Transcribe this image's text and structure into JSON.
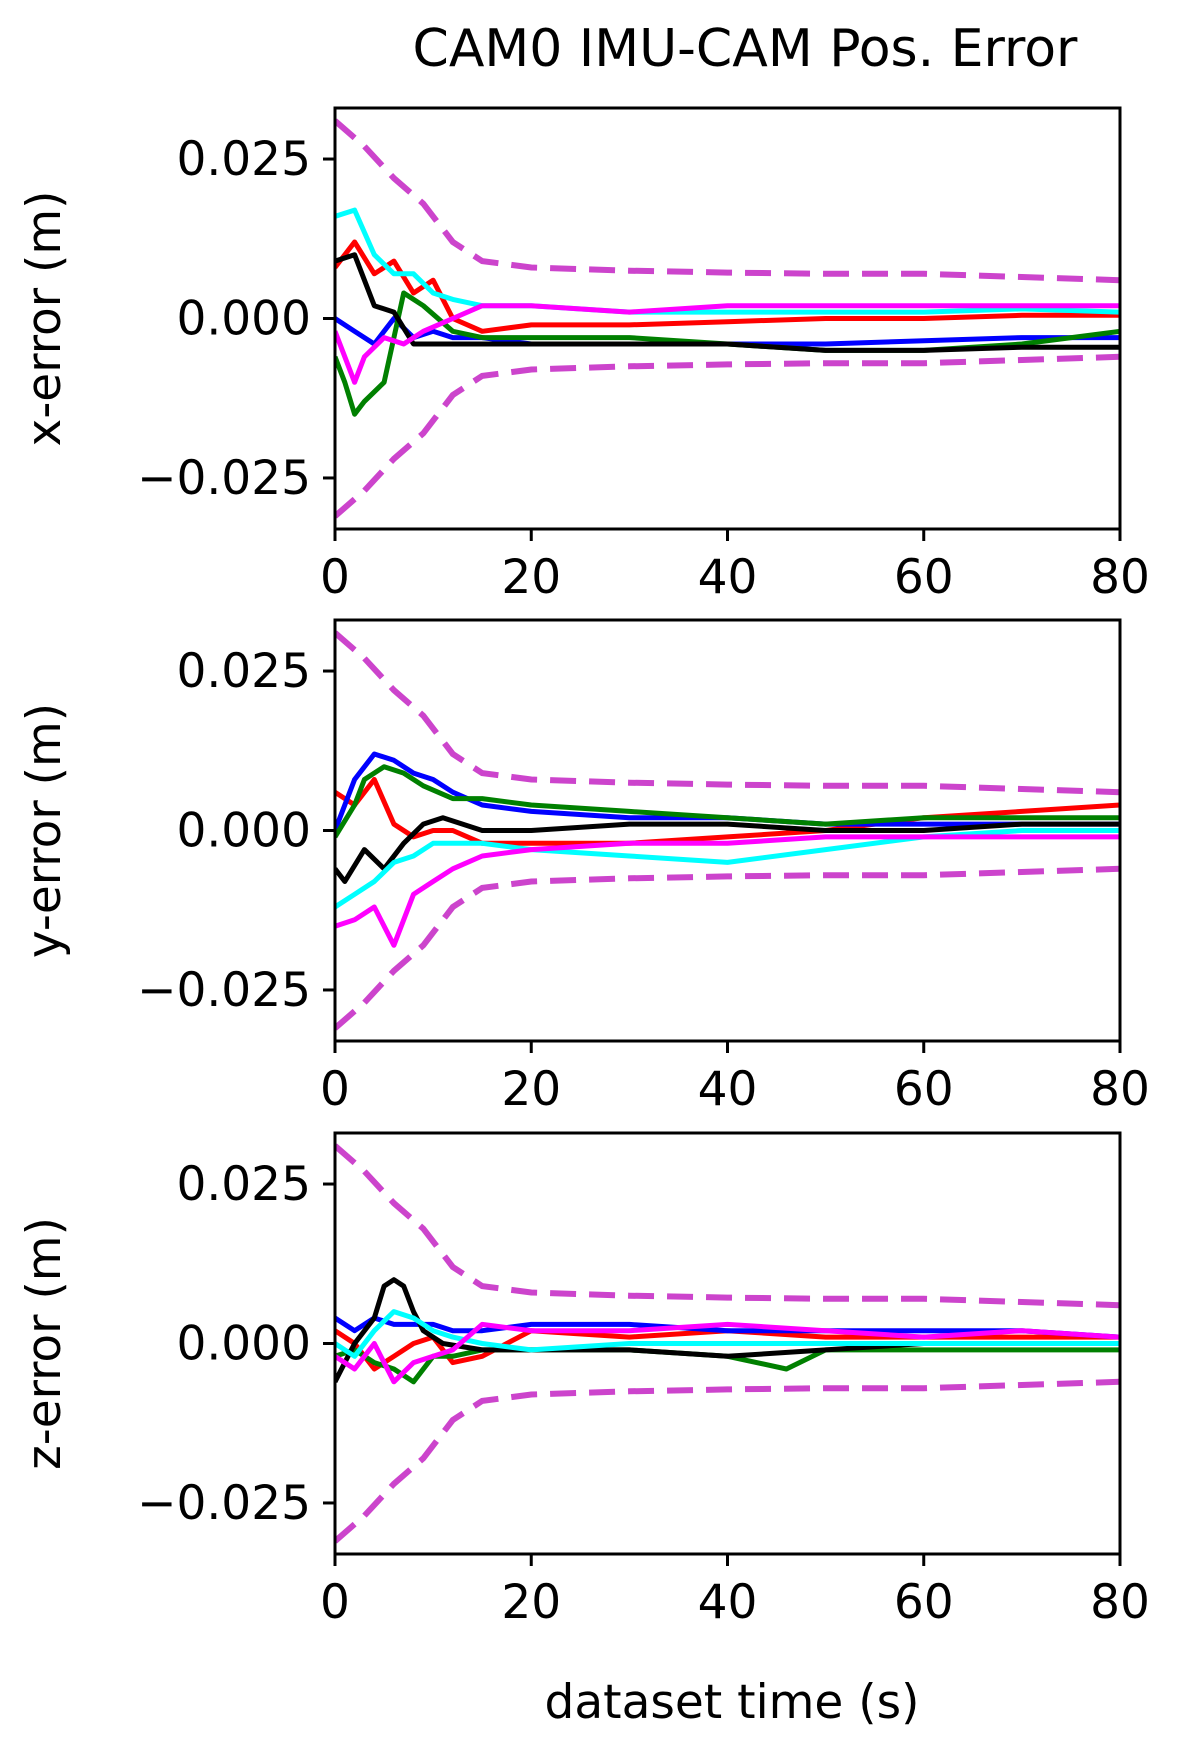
{
  "chart_data": {
    "type": "line",
    "title": "CAM0 IMU-CAM Pos.  Error",
    "xlabel": "dataset time (s)",
    "xlim": [
      0,
      80
    ],
    "xticks": [
      "0",
      "20",
      "40",
      "60",
      "80"
    ],
    "grid": false,
    "legend": "none",
    "series_colors": {
      "red": "#ff0000",
      "blue": "#0000ff",
      "green": "#008000",
      "black": "#000000",
      "cyan": "#00ffff",
      "magenta": "#ff00ff",
      "bound": "#cc44cc"
    },
    "panels": [
      {
        "ylabel": "x-error (m)",
        "ylim": [
          -0.033,
          0.033
        ],
        "yticks": [
          "0.025",
          "0.000",
          "−0.025"
        ],
        "bounds": {
          "t": [
            0,
            3,
            6,
            9,
            12,
            15,
            20,
            30,
            40,
            50,
            60,
            70,
            80
          ],
          "upper": [
            0.031,
            0.027,
            0.022,
            0.018,
            0.012,
            0.009,
            0.008,
            0.0075,
            0.0072,
            0.007,
            0.007,
            0.0065,
            0.006
          ],
          "lower": [
            -0.031,
            -0.027,
            -0.022,
            -0.018,
            -0.012,
            -0.009,
            -0.008,
            -0.0075,
            -0.0072,
            -0.007,
            -0.007,
            -0.0065,
            -0.006
          ]
        },
        "series": [
          {
            "color": "red",
            "t": [
              0,
              2,
              4,
              6,
              8,
              10,
              12,
              15,
              20,
              30,
              40,
              50,
              60,
              70,
              80
            ],
            "values": [
              0.008,
              0.012,
              0.007,
              0.009,
              0.004,
              0.006,
              0.0,
              -0.002,
              -0.001,
              -0.001,
              -0.0005,
              0.0,
              0.0,
              0.0005,
              0.0005
            ]
          },
          {
            "color": "blue",
            "t": [
              0,
              2,
              4,
              6,
              8,
              10,
              12,
              15,
              20,
              30,
              40,
              50,
              60,
              70,
              80
            ],
            "values": [
              0.0,
              -0.002,
              -0.004,
              0.0,
              -0.003,
              -0.002,
              -0.003,
              -0.003,
              -0.004,
              -0.004,
              -0.004,
              -0.004,
              -0.0035,
              -0.003,
              -0.003
            ]
          },
          {
            "color": "green",
            "t": [
              0,
              1,
              2,
              3,
              5,
              7,
              9,
              12,
              15,
              20,
              30,
              40,
              50,
              60,
              70,
              80
            ],
            "values": [
              -0.006,
              -0.01,
              -0.015,
              -0.013,
              -0.01,
              0.004,
              0.002,
              -0.002,
              -0.003,
              -0.003,
              -0.003,
              -0.004,
              -0.005,
              -0.005,
              -0.004,
              -0.002
            ]
          },
          {
            "color": "black",
            "t": [
              0,
              2,
              4,
              6,
              8,
              10,
              12,
              15,
              20,
              30,
              40,
              50,
              60,
              70,
              80
            ],
            "values": [
              0.009,
              0.01,
              0.002,
              0.001,
              -0.004,
              -0.004,
              -0.004,
              -0.004,
              -0.004,
              -0.004,
              -0.004,
              -0.005,
              -0.005,
              -0.0045,
              -0.0045
            ]
          },
          {
            "color": "cyan",
            "t": [
              0,
              2,
              4,
              6,
              8,
              10,
              12,
              15,
              20,
              30,
              40,
              50,
              60,
              70,
              80
            ],
            "values": [
              0.016,
              0.017,
              0.01,
              0.007,
              0.007,
              0.004,
              0.003,
              0.002,
              0.002,
              0.001,
              0.001,
              0.001,
              0.001,
              0.0015,
              0.001
            ]
          },
          {
            "color": "magenta",
            "t": [
              0,
              2,
              3,
              5,
              7,
              9,
              12,
              15,
              20,
              30,
              40,
              50,
              60,
              70,
              80
            ],
            "values": [
              -0.002,
              -0.01,
              -0.006,
              -0.003,
              -0.004,
              -0.002,
              0.0,
              0.002,
              0.002,
              0.001,
              0.002,
              0.002,
              0.002,
              0.002,
              0.002
            ]
          }
        ]
      },
      {
        "ylabel": "y-error (m)",
        "ylim": [
          -0.033,
          0.033
        ],
        "yticks": [
          "0.025",
          "0.000",
          "−0.025"
        ],
        "bounds": {
          "t": [
            0,
            3,
            6,
            9,
            12,
            15,
            20,
            30,
            40,
            50,
            60,
            70,
            80
          ],
          "upper": [
            0.031,
            0.027,
            0.022,
            0.018,
            0.012,
            0.009,
            0.008,
            0.0075,
            0.0072,
            0.007,
            0.007,
            0.0065,
            0.006
          ],
          "lower": [
            -0.031,
            -0.027,
            -0.022,
            -0.018,
            -0.012,
            -0.009,
            -0.008,
            -0.0075,
            -0.0072,
            -0.007,
            -0.007,
            -0.0065,
            -0.006
          ]
        },
        "series": [
          {
            "color": "red",
            "t": [
              0,
              2,
              4,
              6,
              8,
              10,
              12,
              15,
              20,
              30,
              40,
              50,
              60,
              70,
              80
            ],
            "values": [
              0.006,
              0.004,
              0.008,
              0.001,
              -0.001,
              0.0,
              0.0,
              -0.002,
              -0.002,
              -0.002,
              -0.001,
              0.0,
              0.002,
              0.003,
              0.004
            ]
          },
          {
            "color": "blue",
            "t": [
              0,
              2,
              4,
              6,
              8,
              10,
              12,
              15,
              20,
              30,
              40,
              50,
              60,
              70,
              80
            ],
            "values": [
              0.0,
              0.008,
              0.012,
              0.011,
              0.009,
              0.008,
              0.006,
              0.004,
              0.003,
              0.002,
              0.002,
              0.001,
              0.001,
              0.001,
              0.001
            ]
          },
          {
            "color": "green",
            "t": [
              0,
              2,
              3,
              5,
              7,
              9,
              12,
              15,
              20,
              30,
              40,
              50,
              60,
              70,
              80
            ],
            "values": [
              -0.001,
              0.004,
              0.008,
              0.01,
              0.009,
              0.007,
              0.005,
              0.005,
              0.004,
              0.003,
              0.002,
              0.001,
              0.002,
              0.002,
              0.002
            ]
          },
          {
            "color": "black",
            "t": [
              0,
              1,
              3,
              5,
              7,
              9,
              11,
              15,
              20,
              30,
              40,
              50,
              60,
              70,
              80
            ],
            "values": [
              -0.006,
              -0.008,
              -0.003,
              -0.006,
              -0.002,
              0.001,
              0.002,
              0.0,
              0.0,
              0.001,
              0.001,
              0.0,
              0.0,
              0.001,
              0.001
            ]
          },
          {
            "color": "cyan",
            "t": [
              0,
              2,
              4,
              6,
              8,
              10,
              12,
              15,
              20,
              30,
              40,
              50,
              60,
              70,
              80
            ],
            "values": [
              -0.012,
              -0.01,
              -0.008,
              -0.005,
              -0.004,
              -0.002,
              -0.002,
              -0.002,
              -0.003,
              -0.004,
              -0.005,
              -0.003,
              -0.001,
              0.0,
              0.0
            ]
          },
          {
            "color": "magenta",
            "t": [
              0,
              2,
              4,
              6,
              8,
              10,
              12,
              15,
              20,
              30,
              40,
              50,
              60,
              70,
              80
            ],
            "values": [
              -0.015,
              -0.014,
              -0.012,
              -0.018,
              -0.01,
              -0.008,
              -0.006,
              -0.004,
              -0.003,
              -0.002,
              -0.002,
              -0.001,
              -0.001,
              -0.001,
              -0.001
            ]
          }
        ]
      },
      {
        "ylabel": "z-error (m)",
        "ylim": [
          -0.033,
          0.033
        ],
        "yticks": [
          "0.025",
          "0.000",
          "−0.025"
        ],
        "bounds": {
          "t": [
            0,
            3,
            6,
            9,
            12,
            15,
            20,
            30,
            40,
            50,
            60,
            70,
            80
          ],
          "upper": [
            0.031,
            0.027,
            0.022,
            0.018,
            0.012,
            0.009,
            0.008,
            0.0075,
            0.0072,
            0.007,
            0.007,
            0.0065,
            0.006
          ],
          "lower": [
            -0.031,
            -0.027,
            -0.022,
            -0.018,
            -0.012,
            -0.009,
            -0.008,
            -0.0075,
            -0.0072,
            -0.007,
            -0.007,
            -0.0065,
            -0.006
          ]
        },
        "series": [
          {
            "color": "red",
            "t": [
              0,
              2,
              4,
              6,
              8,
              10,
              12,
              15,
              20,
              30,
              40,
              50,
              60,
              70,
              80
            ],
            "values": [
              0.002,
              0.0,
              -0.004,
              -0.002,
              0.0,
              0.001,
              -0.003,
              -0.002,
              0.002,
              0.001,
              0.002,
              0.001,
              0.001,
              0.001,
              0.001
            ]
          },
          {
            "color": "blue",
            "t": [
              0,
              2,
              4,
              6,
              8,
              10,
              12,
              15,
              20,
              30,
              40,
              50,
              60,
              70,
              80
            ],
            "values": [
              0.004,
              0.002,
              0.004,
              0.003,
              0.003,
              0.003,
              0.002,
              0.002,
              0.003,
              0.003,
              0.002,
              0.002,
              0.002,
              0.002,
              0.001
            ]
          },
          {
            "color": "green",
            "t": [
              0,
              2,
              4,
              6,
              8,
              10,
              12,
              15,
              20,
              30,
              40,
              46,
              50,
              60,
              70,
              80
            ],
            "values": [
              -0.002,
              -0.001,
              -0.003,
              -0.004,
              -0.006,
              -0.002,
              -0.002,
              -0.001,
              -0.001,
              -0.001,
              -0.002,
              -0.004,
              -0.001,
              -0.001,
              -0.001,
              -0.001
            ]
          },
          {
            "color": "black",
            "t": [
              0,
              2,
              4,
              5,
              6,
              7,
              8,
              9,
              11,
              15,
              20,
              30,
              40,
              50,
              60,
              70,
              80
            ],
            "values": [
              -0.006,
              0.0,
              0.004,
              0.009,
              0.01,
              0.009,
              0.005,
              0.002,
              0.0,
              -0.001,
              -0.001,
              -0.001,
              -0.002,
              -0.001,
              0.0,
              0.0,
              0.0
            ]
          },
          {
            "color": "cyan",
            "t": [
              0,
              2,
              4,
              6,
              8,
              10,
              12,
              15,
              20,
              30,
              40,
              50,
              60,
              70,
              80
            ],
            "values": [
              0.0,
              -0.002,
              0.002,
              0.005,
              0.004,
              0.002,
              0.001,
              0.0,
              -0.001,
              0.0,
              0.0,
              0.0,
              0.0,
              0.0,
              0.0
            ]
          },
          {
            "color": "magenta",
            "t": [
              0,
              2,
              4,
              6,
              8,
              10,
              12,
              15,
              20,
              30,
              40,
              50,
              60,
              70,
              80
            ],
            "values": [
              -0.002,
              -0.004,
              0.0,
              -0.006,
              -0.003,
              -0.002,
              -0.001,
              0.003,
              0.002,
              0.002,
              0.003,
              0.002,
              0.001,
              0.002,
              0.001
            ]
          }
        ]
      }
    ]
  }
}
